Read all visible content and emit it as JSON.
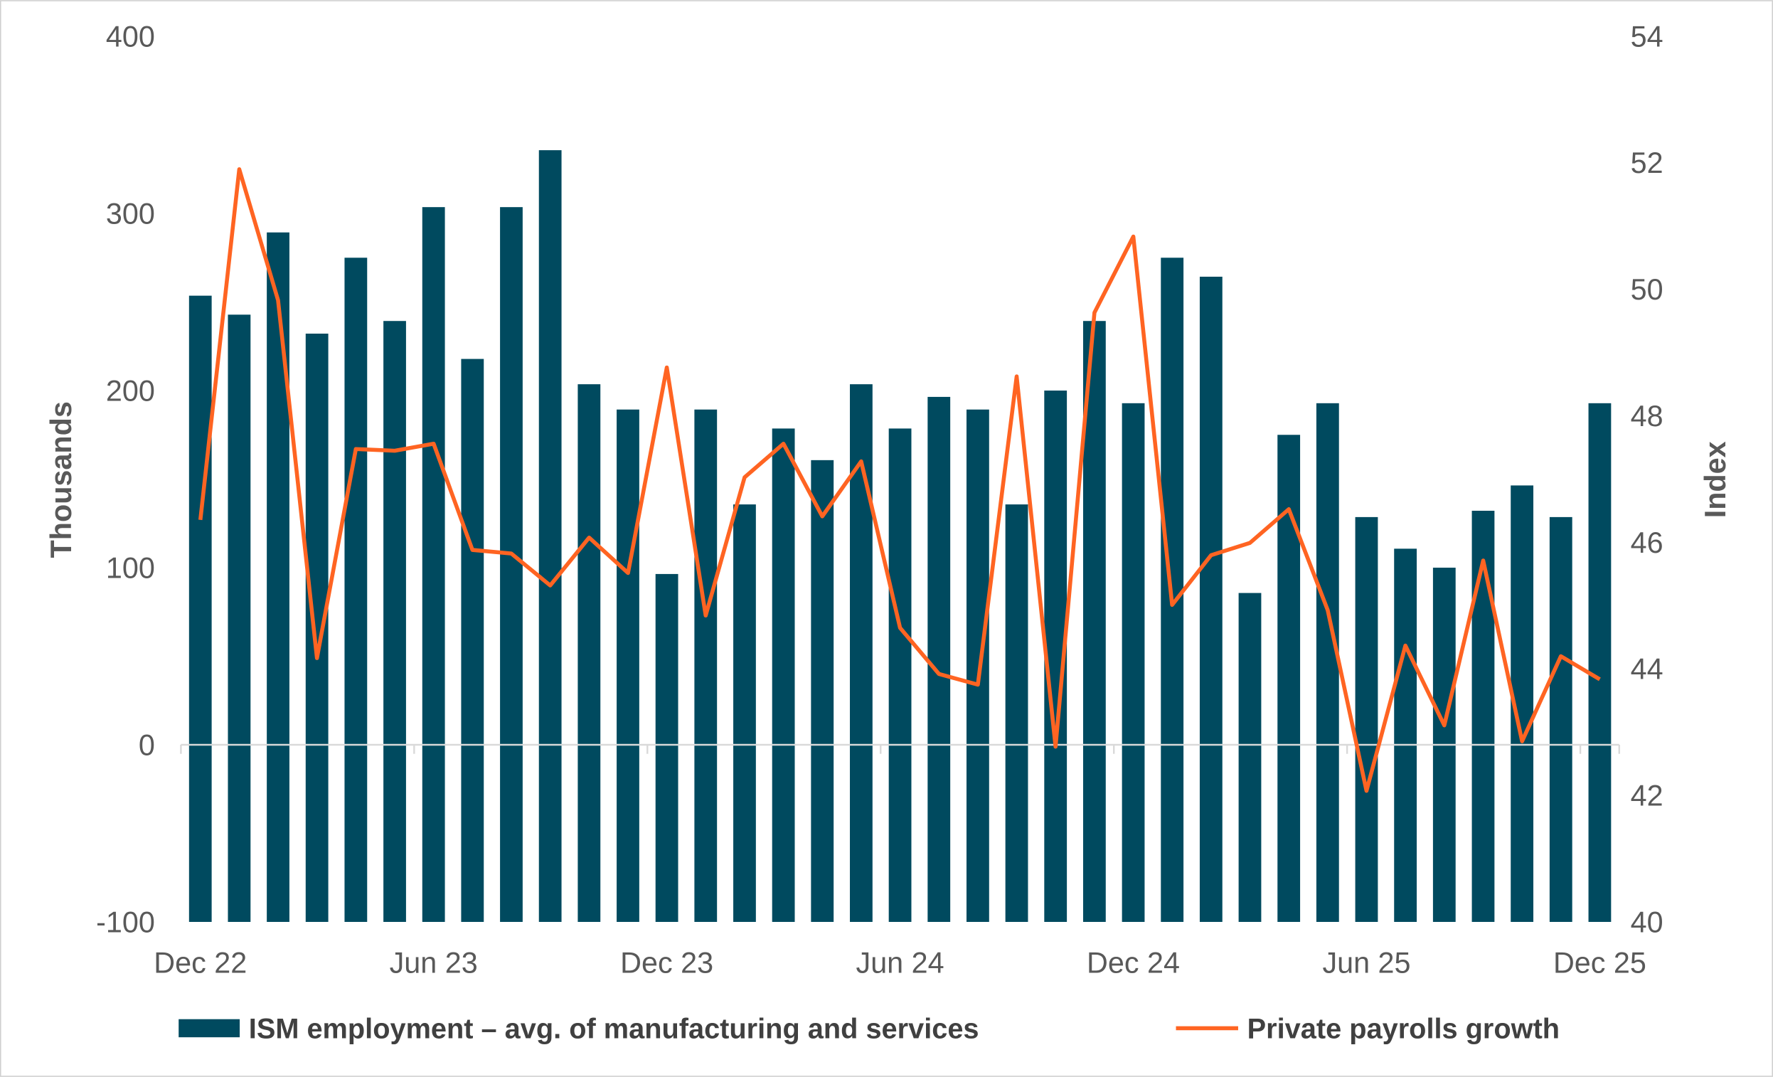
{
  "chart_data": {
    "type": "bar+line",
    "title": "",
    "ylabel_left": "Thousands",
    "ylabel_right": "Index",
    "ylim_left": [
      -100,
      400
    ],
    "ylim_right": [
      40,
      54
    ],
    "yticks_left": [
      "400",
      "300",
      "200",
      "100",
      "0",
      "-100"
    ],
    "yticks_right": [
      "54",
      "52",
      "50",
      "48",
      "46",
      "44",
      "42",
      "40"
    ],
    "xtick_labels": [
      "Dec 22",
      "Jun 23",
      "Dec 23",
      "Jun 24",
      "Dec 24",
      "Jun 25",
      "Dec 25"
    ],
    "grid": false,
    "legend_position": "bottom",
    "categories": [
      "Dec 22",
      "Jan 23",
      "Feb 23",
      "Mar 23",
      "Apr 23",
      "May 23",
      "Jun 23",
      "Jul 23",
      "Aug 23",
      "Sep 23",
      "Oct 23",
      "Nov 23",
      "Dec 23",
      "Jan 24",
      "Feb 24",
      "Mar 24",
      "Apr 24",
      "May 24",
      "Jun 24",
      "Jul 24",
      "Aug 24",
      "Sep 24",
      "Oct 24",
      "Nov 24",
      "Dec 24",
      "Jan 25",
      "Feb 25",
      "Mar 25",
      "Apr 25",
      "May 25",
      "Jun 25",
      "Jul 25",
      "Aug 25",
      "Sep 25",
      "Oct 25",
      "Nov 25",
      "Dec 25"
    ],
    "series": [
      {
        "name": "ISM employment – avg. of manufacturing and services",
        "type": "bar",
        "axis": "right",
        "color": "#004A5F",
        "values": [
          49.9,
          49.6,
          50.9,
          49.3,
          50.5,
          49.5,
          51.3,
          48.9,
          51.3,
          52.2,
          48.5,
          48.1,
          45.5,
          48.1,
          46.6,
          47.8,
          47.3,
          48.5,
          47.8,
          48.3,
          48.1,
          46.6,
          48.4,
          49.5,
          48.2,
          50.5,
          50.2,
          45.2,
          47.7,
          48.2,
          46.4,
          45.9,
          45.6,
          46.5,
          46.9,
          46.4,
          48.2
        ]
      },
      {
        "name": "Private payrolls growth",
        "type": "line",
        "axis": "left",
        "color": "#FF6422",
        "values": [
          127,
          325,
          251,
          49,
          167,
          166,
          170,
          110,
          108,
          90,
          117,
          97,
          213,
          73,
          151,
          170,
          129,
          160,
          66,
          40,
          34,
          208,
          -1,
          244,
          287,
          79,
          107,
          114,
          133,
          76,
          -26,
          56,
          11,
          104,
          2,
          50,
          37
        ]
      }
    ]
  }
}
